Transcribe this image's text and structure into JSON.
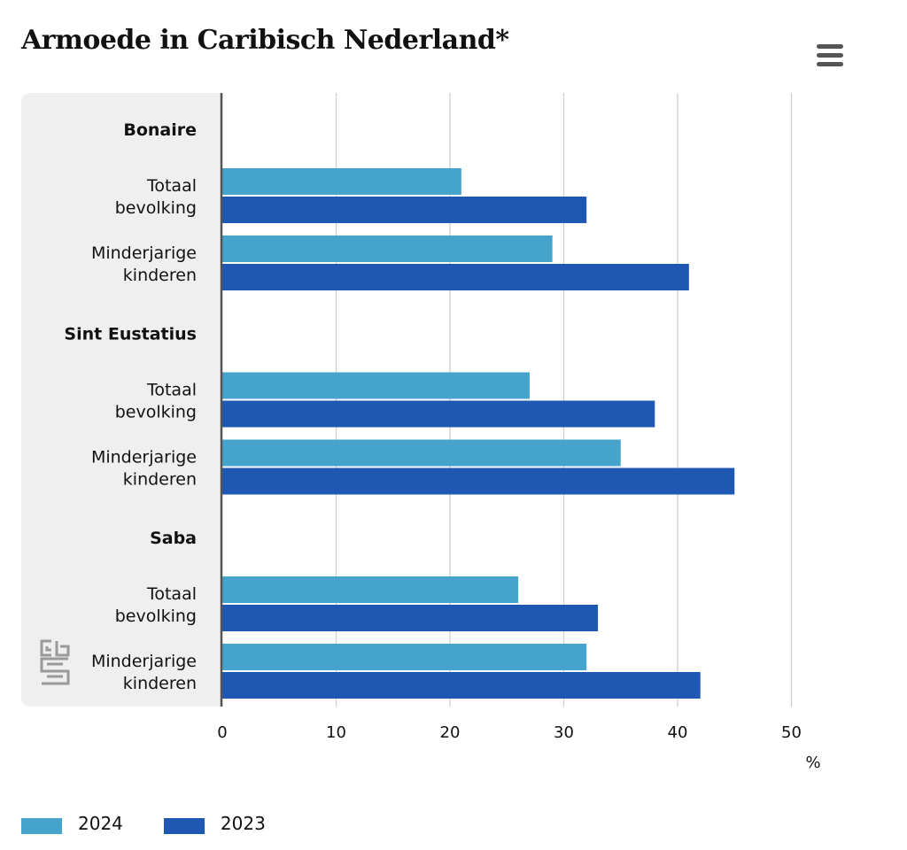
{
  "title": "Armoede in Caribisch Nederland*",
  "menu_icon": "hamburger-menu-icon",
  "logo_icon": "cbs-logo-icon",
  "colors": {
    "series_2024": "#46a3cc",
    "series_2023": "#1f58b3",
    "panel": "#efefef",
    "grid": "#cccccc",
    "axis": "#555555"
  },
  "chart_data": {
    "type": "bar",
    "orientation": "horizontal",
    "groups": [
      {
        "name": "Bonaire",
        "categories": [
          {
            "label": "Totaal bevolking",
            "values": {
              "2024": 21,
              "2023": 32
            }
          },
          {
            "label": "Minderjarige kinderen",
            "values": {
              "2024": 29,
              "2023": 41
            }
          }
        ]
      },
      {
        "name": "Sint Eustatius",
        "categories": [
          {
            "label": "Totaal bevolking",
            "values": {
              "2024": 27,
              "2023": 38
            }
          },
          {
            "label": "Minderjarige kinderen",
            "values": {
              "2024": 35,
              "2023": 45
            }
          }
        ]
      },
      {
        "name": "Saba",
        "categories": [
          {
            "label": "Totaal bevolking",
            "values": {
              "2024": 26,
              "2023": 33
            }
          },
          {
            "label": "Minderjarige kinderen",
            "values": {
              "2024": 32,
              "2023": 42
            }
          }
        ]
      }
    ],
    "series": [
      {
        "name": "2024",
        "color": "#46a3cc"
      },
      {
        "name": "2023",
        "color": "#1f58b3"
      }
    ],
    "xlim": [
      0,
      50
    ],
    "xticks": [
      "0",
      "10",
      "20",
      "30",
      "40",
      "50"
    ],
    "xunit": "%",
    "grid": true,
    "legend_position": "bottom-left"
  }
}
